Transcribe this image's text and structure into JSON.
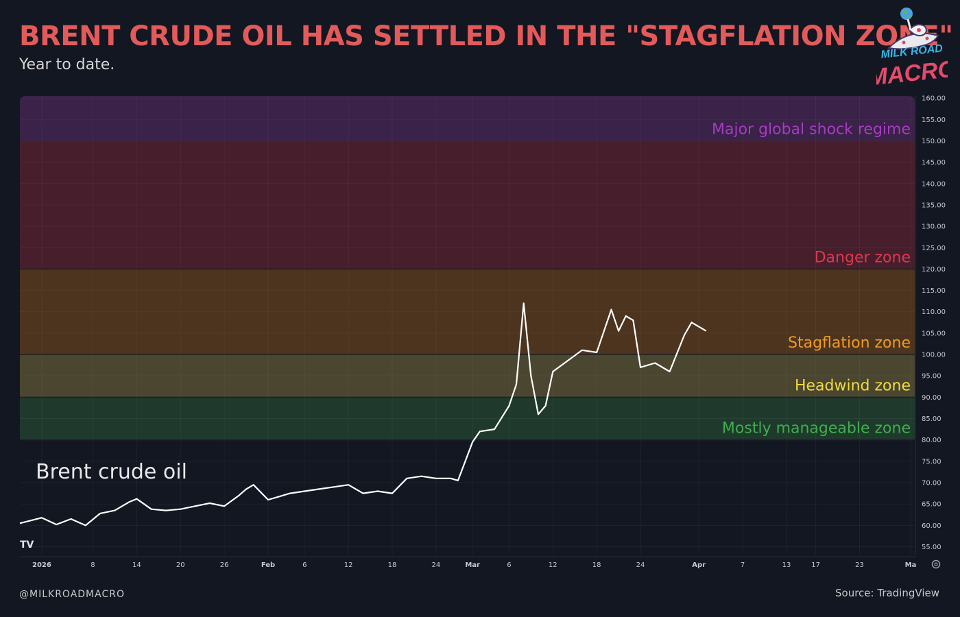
{
  "header": {
    "title": "BRENT CRUDE OIL HAS SETTLED IN THE \"STAGFLATION ZONE\"",
    "subtitle": "Year to date."
  },
  "logo": {
    "line1": "MILK ROAD",
    "line2": "MACRO",
    "icon": "astronaut-on-moon-icon"
  },
  "footer": {
    "handle": "@MILKROADMACRO",
    "source": "Source: TradingView"
  },
  "tradingview_logo": {
    "text": "TV"
  },
  "settings_icon": "gear-icon",
  "colors": {
    "background": "#131722",
    "title": "#e35a5a",
    "line": "#ffffff",
    "zone_major": "#3a2248",
    "zone_danger": "#471f2c",
    "zone_stagflation": "#4d341e",
    "zone_headwind": "#4a4630",
    "zone_manageable": "#1f3a2d"
  },
  "chart_data": {
    "type": "line",
    "title": "",
    "xlabel": "",
    "ylabel": "",
    "ylim": [
      53,
      160.5
    ],
    "y_ticks": [
      "160.00",
      "155.00",
      "150.00",
      "145.00",
      "140.00",
      "135.00",
      "130.00",
      "125.00",
      "120.00",
      "115.00",
      "110.00",
      "105.00",
      "100.00",
      "95.00",
      "90.00",
      "85.00",
      "80.00",
      "75.00",
      "70.00",
      "65.00",
      "60.00",
      "55.00"
    ],
    "x_ticks": [
      {
        "label": "2026",
        "date": "2026-01-01",
        "bold": true
      },
      {
        "label": "8",
        "date": "2026-01-08"
      },
      {
        "label": "14",
        "date": "2026-01-14"
      },
      {
        "label": "20",
        "date": "2026-01-20"
      },
      {
        "label": "26",
        "date": "2026-01-26"
      },
      {
        "label": "Feb",
        "date": "2026-02-01",
        "bold": true
      },
      {
        "label": "6",
        "date": "2026-02-06"
      },
      {
        "label": "12",
        "date": "2026-02-12"
      },
      {
        "label": "18",
        "date": "2026-02-18"
      },
      {
        "label": "24",
        "date": "2026-02-24"
      },
      {
        "label": "Mar",
        "date": "2026-03-01",
        "bold": true
      },
      {
        "label": "6",
        "date": "2026-03-06"
      },
      {
        "label": "12",
        "date": "2026-03-12"
      },
      {
        "label": "18",
        "date": "2026-03-18"
      },
      {
        "label": "24",
        "date": "2026-03-24"
      },
      {
        "label": "Apr",
        "date": "2026-04-01",
        "bold": true
      },
      {
        "label": "7",
        "date": "2026-04-07"
      },
      {
        "label": "13",
        "date": "2026-04-13"
      },
      {
        "label": "17",
        "date": "2026-04-17"
      },
      {
        "label": "23",
        "date": "2026-04-23"
      },
      {
        "label": "Ma",
        "date": "2026-04-30",
        "bold": true
      }
    ],
    "zones": [
      {
        "name": "Major global shock regime",
        "from": 150,
        "to": 160.5,
        "color": "#3a2248",
        "label_color": "#a63cc2"
      },
      {
        "name": "Danger zone",
        "from": 120,
        "to": 150,
        "color": "#471f2c",
        "label_color": "#e0354f"
      },
      {
        "name": "Stagflation zone",
        "from": 100,
        "to": 120,
        "color": "#4d341e",
        "label_color": "#f09a24"
      },
      {
        "name": "Headwind zone",
        "from": 90,
        "to": 100,
        "color": "#4a4630",
        "label_color": "#f0dc3c"
      },
      {
        "name": "Mostly manageable zone",
        "from": 80,
        "to": 90,
        "color": "#1f3a2d",
        "label_color": "#3fae4c"
      }
    ],
    "series": [
      {
        "name": "Brent crude oil",
        "x": [
          "2025-12-29",
          "2026-01-01",
          "2026-01-03",
          "2026-01-05",
          "2026-01-07",
          "2026-01-09",
          "2026-01-11",
          "2026-01-13",
          "2026-01-14",
          "2026-01-16",
          "2026-01-18",
          "2026-01-20",
          "2026-01-22",
          "2026-01-24",
          "2026-01-26",
          "2026-01-28",
          "2026-01-29",
          "2026-01-30",
          "2026-02-01",
          "2026-02-02",
          "2026-02-04",
          "2026-02-06",
          "2026-02-08",
          "2026-02-10",
          "2026-02-12",
          "2026-02-14",
          "2026-02-16",
          "2026-02-18",
          "2026-02-20",
          "2026-02-22",
          "2026-02-24",
          "2026-02-26",
          "2026-02-27",
          "2026-03-01",
          "2026-03-02",
          "2026-03-04",
          "2026-03-06",
          "2026-03-07",
          "2026-03-08",
          "2026-03-09",
          "2026-03-10",
          "2026-03-11",
          "2026-03-12",
          "2026-03-14",
          "2026-03-16",
          "2026-03-18",
          "2026-03-20",
          "2026-03-21",
          "2026-03-22",
          "2026-03-23",
          "2026-03-24",
          "2026-03-26",
          "2026-03-28",
          "2026-03-30",
          "2026-03-31",
          "2026-04-01",
          "2026-04-02"
        ],
        "y": [
          60.5,
          61.8,
          60.2,
          61.5,
          60.0,
          62.8,
          63.5,
          65.5,
          66.2,
          63.8,
          63.5,
          63.8,
          64.5,
          65.2,
          64.5,
          67.0,
          68.5,
          69.5,
          66.0,
          66.5,
          67.5,
          68.0,
          68.5,
          69.0,
          69.5,
          67.5,
          68.0,
          67.5,
          71.0,
          71.5,
          71.0,
          71.0,
          70.5,
          79.5,
          82.0,
          82.5,
          88.0,
          93.0,
          112.0,
          95.0,
          86.0,
          88.0,
          96.0,
          98.5,
          101.0,
          100.5,
          110.5,
          105.5,
          109.0,
          108.0,
          97.0,
          98.0,
          96.0,
          104.5,
          107.5,
          106.5,
          105.5
        ]
      }
    ],
    "annotations": [
      {
        "text": "Brent crude oil"
      }
    ]
  }
}
